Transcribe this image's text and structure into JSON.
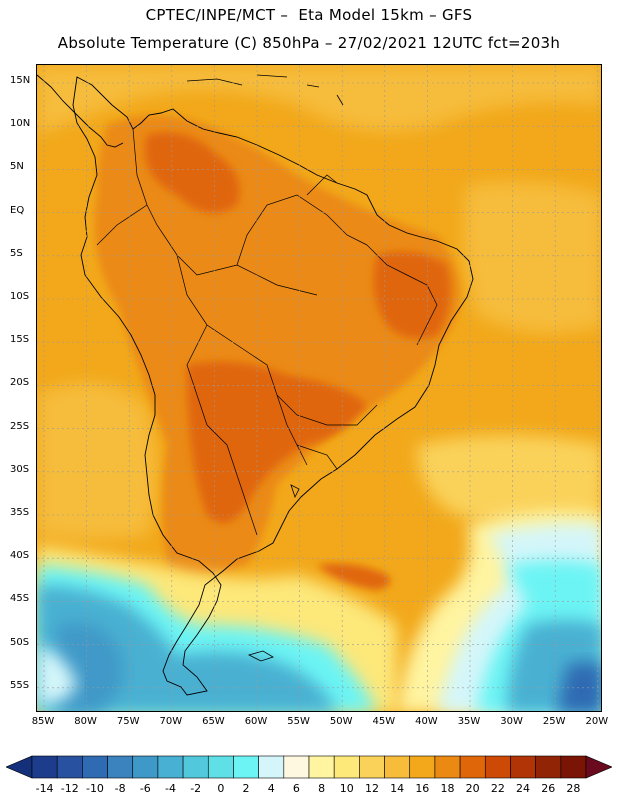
{
  "header": {
    "line1": "CPTEC/INPE/MCT –  Eta Model 15km – GFS",
    "line2": "Absolute Temperature (C) 850hPa – 27/02/2021 12UTC fct=203h"
  },
  "axes": {
    "lat_labels": [
      "15N",
      "10N",
      "5N",
      "EQ",
      "5S",
      "10S",
      "15S",
      "20S",
      "25S",
      "30S",
      "35S",
      "40S",
      "45S",
      "50S",
      "55S"
    ],
    "lon_labels": [
      "85W",
      "80W",
      "75W",
      "70W",
      "65W",
      "60W",
      "55W",
      "50W",
      "45W",
      "40W",
      "35W",
      "30W",
      "25W",
      "20W"
    ]
  },
  "colorbar": {
    "labels": [
      "-14",
      "-12",
      "-10",
      "-8",
      "-6",
      "-4",
      "-2",
      "0",
      "2",
      "4",
      "6",
      "8",
      "10",
      "12",
      "14",
      "16",
      "18",
      "20",
      "22",
      "24",
      "26",
      "28"
    ],
    "colors": [
      "#1d3c8c",
      "#2852a0",
      "#2f6bb2",
      "#3a83bf",
      "#3f99c8",
      "#48b0d2",
      "#52c8dc",
      "#5ee0e6",
      "#6cf4f4",
      "#d4f6fa",
      "#fff8e0",
      "#fff4a0",
      "#fde87a",
      "#fad25a",
      "#f6bc3a",
      "#f2a81a",
      "#eb8a12",
      "#e0660a",
      "#cc4a06",
      "#b03406",
      "#922406",
      "#7a1404"
    ],
    "under_color": "#14307a",
    "over_color": "#6a0a1e"
  },
  "map": {
    "base_color": "#f2a81a",
    "coast_color": "#000000"
  }
}
